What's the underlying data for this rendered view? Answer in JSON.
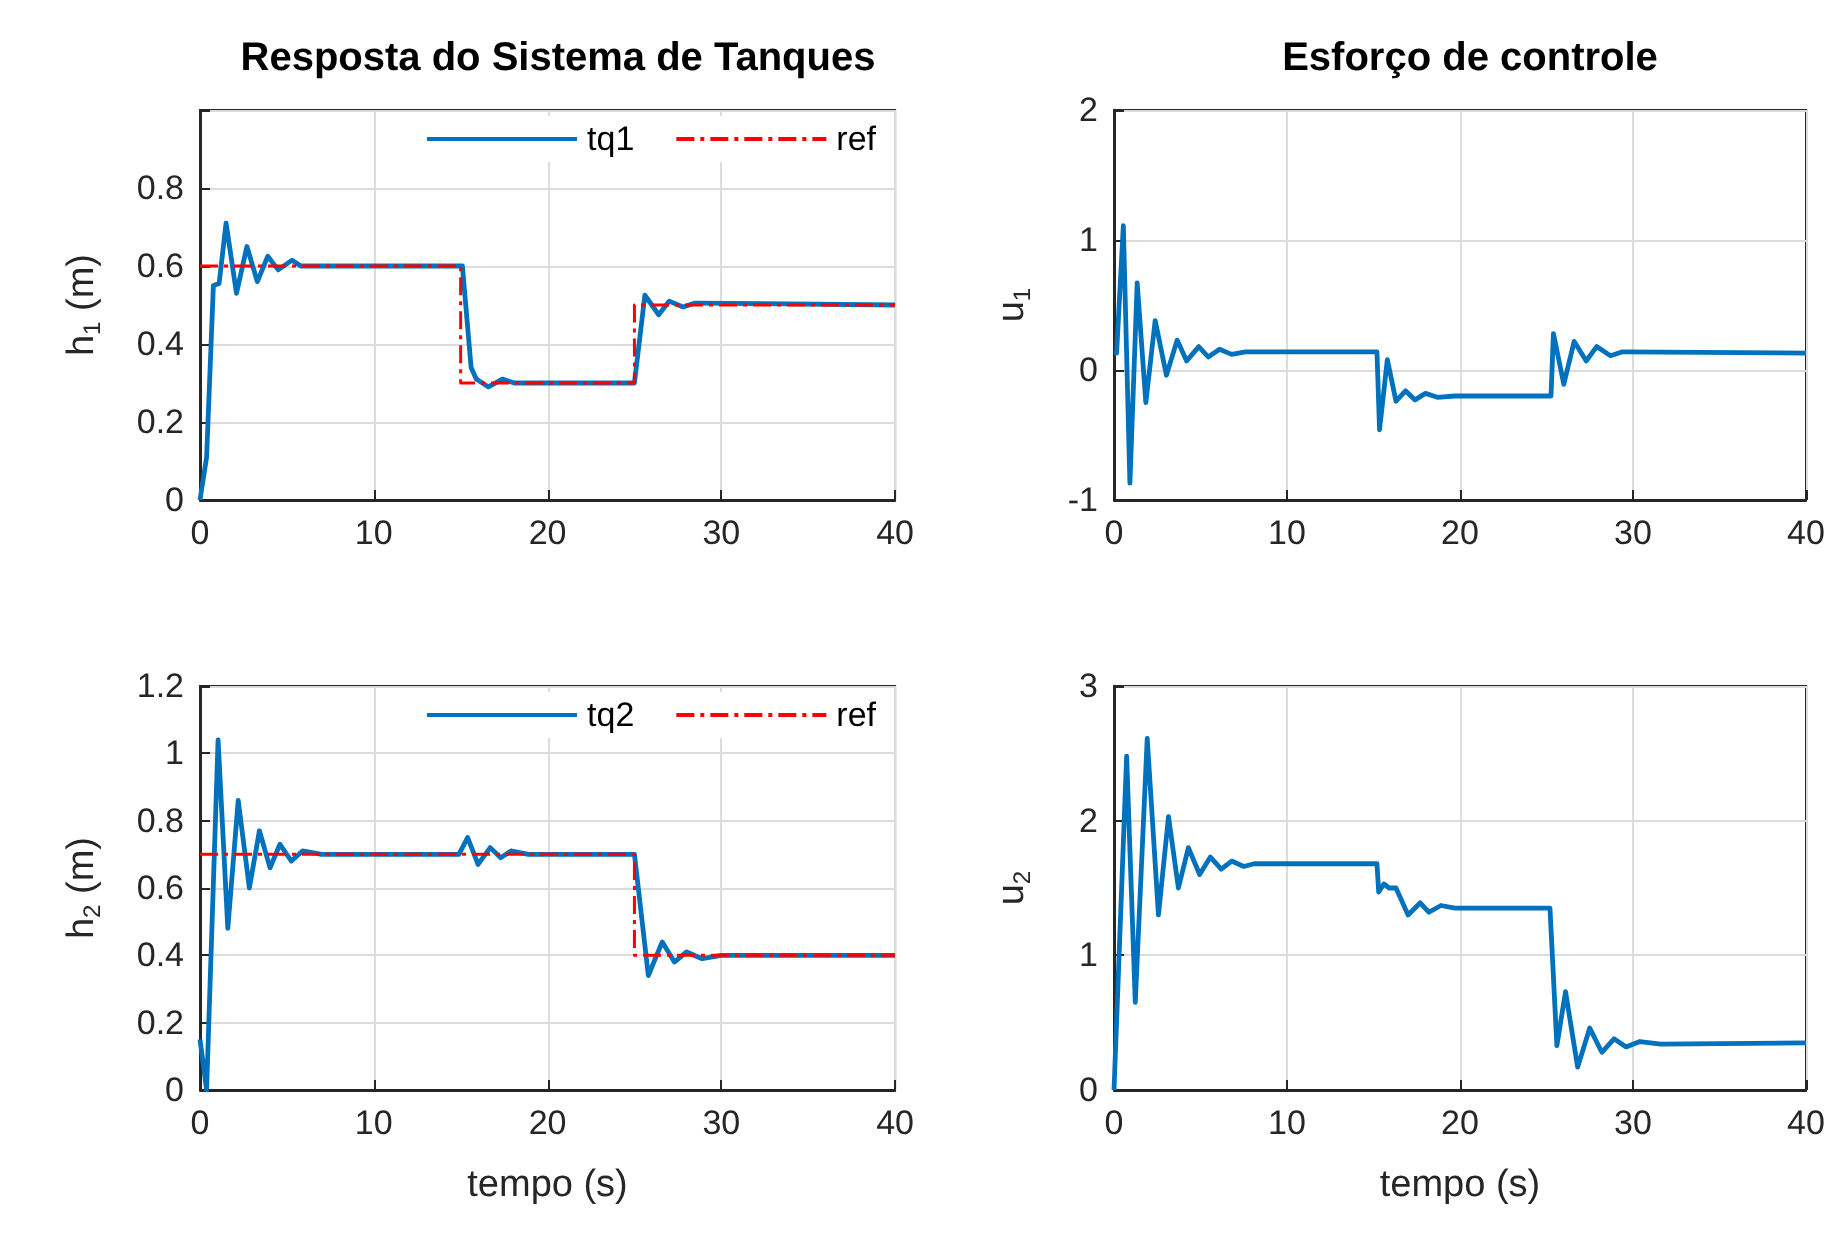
{
  "chart_data": [
    {
      "type": "line",
      "title": "Resposta do Sistema de Tanques",
      "ylabel": "h$_{1}$ (m)",
      "xlim": [
        0,
        40
      ],
      "xticks": [
        0,
        10,
        20,
        30,
        40
      ],
      "ylim": [
        0,
        1
      ],
      "yticks": [
        0,
        0.2,
        0.4,
        0.6,
        0.8
      ],
      "grid": true,
      "legend": "top right",
      "series": [
        {
          "name": "tq1",
          "color": "#0072bd",
          "line_style": "solid",
          "x": [
            0,
            0.38,
            0.77,
            1.1,
            1.5,
            2.1,
            2.7,
            3.3,
            3.9,
            4.5,
            5.3,
            5.8,
            14.7,
            15.1,
            15.6,
            15.9,
            16.6,
            17.4,
            18.1,
            25.0,
            25.6,
            26.4,
            27.0,
            27.8,
            28.5,
            40
          ],
          "values": [
            0,
            0.11,
            0.55,
            0.555,
            0.71,
            0.53,
            0.65,
            0.56,
            0.625,
            0.59,
            0.615,
            0.6,
            0.6,
            0.6,
            0.34,
            0.31,
            0.29,
            0.31,
            0.3,
            0.3,
            0.525,
            0.475,
            0.51,
            0.495,
            0.505,
            0.5
          ]
        },
        {
          "name": "ref",
          "color": "#ff0000",
          "line_style": "dashed",
          "x": [
            0,
            15,
            15,
            25,
            25,
            40
          ],
          "values": [
            0.6,
            0.6,
            0.3,
            0.3,
            0.5,
            0.5
          ]
        }
      ]
    },
    {
      "type": "line",
      "title": "Esforço de controle",
      "ylabel": "u$_{1}$",
      "xlim": [
        0,
        40
      ],
      "xticks": [
        0,
        10,
        20,
        30,
        40
      ],
      "ylim": [
        -1,
        2
      ],
      "yticks": [
        -1,
        0,
        1,
        2
      ],
      "grid": true,
      "series": [
        {
          "color": "#0072bd",
          "line_style": "solid",
          "x": [
            0,
            0.15,
            0.54,
            0.92,
            1.34,
            1.84,
            2.38,
            3.03,
            3.65,
            4.2,
            4.9,
            5.45,
            6.1,
            6.8,
            7.6,
            15.2,
            15.35,
            15.8,
            16.3,
            16.85,
            17.4,
            18.0,
            18.7,
            19.7,
            25.26,
            25.4,
            26.0,
            26.6,
            27.3,
            27.9,
            28.7,
            29.4,
            40
          ],
          "values": [
            0.13,
            0.13,
            1.11,
            -0.87,
            0.67,
            -0.25,
            0.38,
            -0.04,
            0.23,
            0.07,
            0.18,
            0.1,
            0.16,
            0.12,
            0.14,
            0.14,
            -0.46,
            0.08,
            -0.24,
            -0.16,
            -0.23,
            -0.18,
            -0.21,
            -0.2,
            -0.2,
            0.28,
            -0.11,
            0.22,
            0.07,
            0.18,
            0.11,
            0.14,
            0.13
          ]
        }
      ]
    },
    {
      "type": "line",
      "xlabel": "tempo (s)",
      "ylabel": "h$_{2}$ (m)",
      "xlim": [
        0,
        40
      ],
      "xticks": [
        0,
        10,
        20,
        30,
        40
      ],
      "ylim": [
        0,
        1.2
      ],
      "yticks": [
        0,
        0.2,
        0.4,
        0.6,
        0.8,
        1,
        1.2
      ],
      "grid": true,
      "legend": "top right",
      "series": [
        {
          "name": "tq2",
          "color": "#0072bd",
          "line_style": "solid",
          "x": [
            0,
            0.38,
            1.04,
            1.6,
            2.2,
            2.84,
            3.42,
            4.03,
            4.6,
            5.26,
            5.9,
            7.0,
            14.9,
            15.4,
            16.0,
            16.7,
            17.3,
            17.9,
            18.9,
            25.0,
            25.8,
            26.6,
            27.3,
            28.0,
            28.9,
            30.0,
            40
          ],
          "values": [
            0.15,
            0,
            1.04,
            0.48,
            0.86,
            0.6,
            0.77,
            0.66,
            0.73,
            0.68,
            0.71,
            0.7,
            0.7,
            0.75,
            0.67,
            0.72,
            0.69,
            0.71,
            0.7,
            0.7,
            0.34,
            0.44,
            0.38,
            0.41,
            0.39,
            0.4,
            0.4
          ]
        },
        {
          "name": "ref",
          "color": "#ff0000",
          "line_style": "dashed",
          "x": [
            0,
            25,
            25,
            40
          ],
          "values": [
            0.7,
            0.7,
            0.4,
            0.4
          ]
        }
      ]
    },
    {
      "type": "line",
      "xlabel": "tempo (s)",
      "ylabel": "u$_{2}$",
      "xlim": [
        0,
        40
      ],
      "xticks": [
        0,
        10,
        20,
        30,
        40
      ],
      "ylim": [
        0,
        3
      ],
      "yticks": [
        0,
        1,
        2,
        3
      ],
      "grid": true,
      "series": [
        {
          "color": "#0072bd",
          "line_style": "solid",
          "x": [
            0,
            0.73,
            1.23,
            1.92,
            2.57,
            3.15,
            3.72,
            4.3,
            4.95,
            5.57,
            6.2,
            6.8,
            7.5,
            8.1,
            15.2,
            15.3,
            15.6,
            15.9,
            16.3,
            17.0,
            17.7,
            18.2,
            18.9,
            19.7,
            25.2,
            25.6,
            26.1,
            26.8,
            27.5,
            28.2,
            28.9,
            29.6,
            30.4,
            31.6,
            40
          ],
          "values": [
            0,
            2.48,
            0.65,
            2.61,
            1.3,
            2.03,
            1.5,
            1.8,
            1.6,
            1.73,
            1.64,
            1.7,
            1.66,
            1.68,
            1.68,
            1.47,
            1.53,
            1.5,
            1.5,
            1.3,
            1.39,
            1.32,
            1.37,
            1.35,
            1.35,
            0.33,
            0.73,
            0.17,
            0.46,
            0.28,
            0.38,
            0.32,
            0.36,
            0.34,
            0.35
          ]
        }
      ]
    }
  ]
}
